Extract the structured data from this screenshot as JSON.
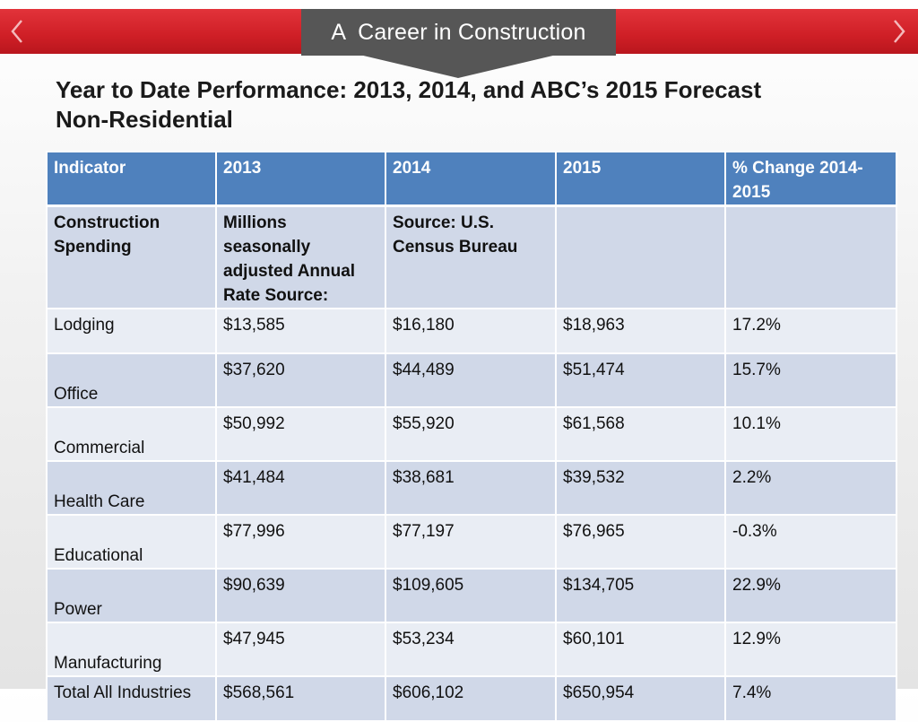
{
  "slide": {
    "header_title": "A  Career in Construction",
    "heading_line1": "Year to Date Performance: 2013, 2014, and ABC’s 2015 Forecast",
    "heading_line2": "Non-Residential",
    "nav": {
      "prev_icon": "chevron-left-icon",
      "next_icon": "chevron-right-icon"
    }
  },
  "colors": {
    "top_bar": "#d32027",
    "title_tab": "#565656",
    "table_header": "#4f81bd",
    "row_dark": "#d0d8e8",
    "row_light": "#e9edf4"
  },
  "table": {
    "headers": [
      "Indicator",
      "2013",
      "2014",
      "2015",
      "% Change 2014-2015"
    ],
    "note_row": [
      "Construction Spending",
      "Millions seasonally adjusted Annual Rate Source:",
      "Source: U.S. Census Bureau",
      "",
      ""
    ],
    "rows": [
      [
        "Lodging",
        "$13,585",
        "$16,180",
        "$18,963",
        "17.2%"
      ],
      [
        "Office",
        "$37,620",
        "$44,489",
        "$51,474",
        "15.7%"
      ],
      [
        "Commercial",
        "$50,992",
        "$55,920",
        "$61,568",
        "10.1%"
      ],
      [
        "Health Care",
        "$41,484",
        "$38,681",
        "$39,532",
        "2.2%"
      ],
      [
        "Educational",
        "$77,996",
        "$77,197",
        "$76,965",
        "-0.3%"
      ],
      [
        "Power",
        "$90,639",
        "$109,605",
        "$134,705",
        "22.9%"
      ],
      [
        "Manufacturing",
        "$47,945",
        "$53,234",
        "$60,101",
        "12.9%"
      ],
      [
        "Total All Industries",
        "$568,561",
        "$606,102",
        "$650,954",
        "7.4%"
      ]
    ]
  }
}
